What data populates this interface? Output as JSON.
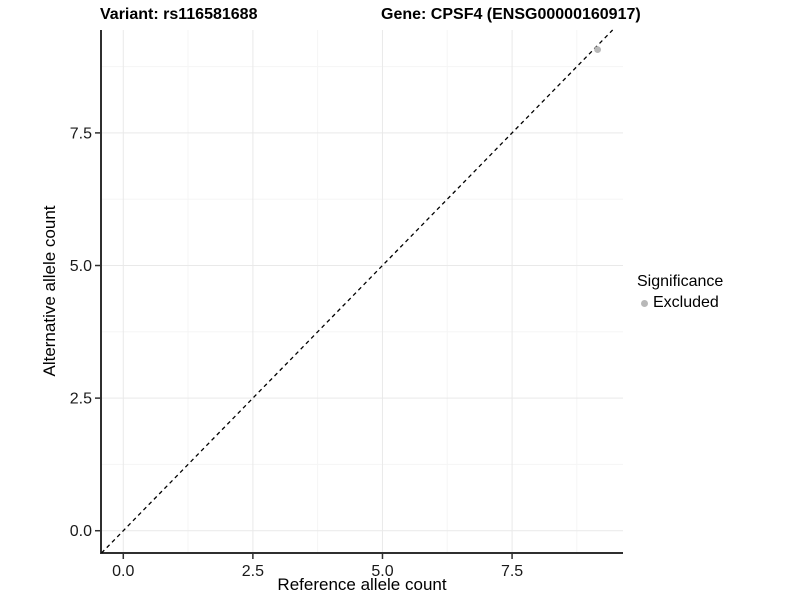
{
  "chart_data": {
    "type": "scatter",
    "title_left": "Variant: rs116581688",
    "title_right": "Gene: CPSF4 (ENSG00000160917)",
    "xlabel": "Reference allele count",
    "ylabel": "Alternative allele count",
    "x_ticks": {
      "values": [
        0,
        2.5,
        5,
        7.5
      ],
      "labels": [
        "0.0",
        "2.5",
        "5.0",
        "7.5"
      ]
    },
    "y_ticks": {
      "values": [
        0,
        2.5,
        5,
        7.5
      ],
      "labels": [
        "0.0",
        "2.5",
        "5.0",
        "7.5"
      ]
    },
    "x_minor_ticks": [
      1.25,
      3.75,
      6.25,
      8.75
    ],
    "y_minor_ticks": [
      1.25,
      3.75,
      6.25,
      8.75
    ],
    "xlim": [
      -0.43,
      9.64
    ],
    "ylim": [
      -0.42,
      9.44
    ],
    "grid": {
      "major_color": "#e9e9e9",
      "minor_color": "#f5f5f5"
    },
    "axis_color": "#2f2f2f",
    "identity_line": {
      "type": "dashed",
      "slope": 1,
      "intercept": 0,
      "color": "#000000"
    },
    "series": [
      {
        "name": "Excluded",
        "color": "#b8b8b8",
        "points": [
          {
            "x": 9.15,
            "y": 9.07
          }
        ]
      }
    ],
    "legend": {
      "title": "Significance",
      "position": "right",
      "items": [
        {
          "label": "Excluded",
          "color": "#b8b8b8"
        }
      ]
    }
  }
}
